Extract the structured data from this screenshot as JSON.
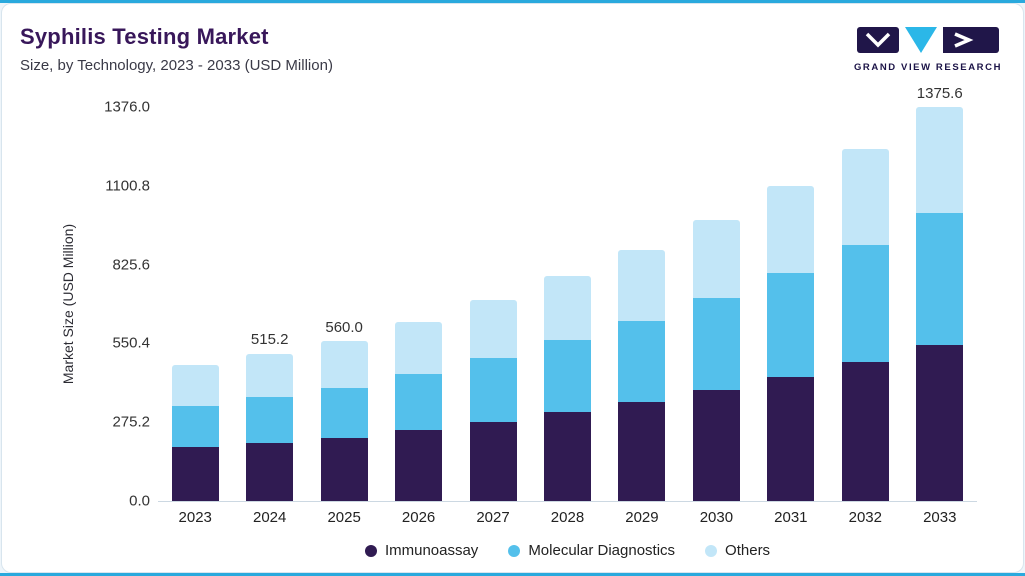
{
  "page": {
    "title": "Syphilis Testing Market",
    "subtitle": "Size, by Technology, 2023 - 2033 (USD Million)",
    "logo_text": "GRAND VIEW RESEARCH"
  },
  "colors": {
    "accent_line": "#29a9dd",
    "title_text": "#38175a",
    "logo_navy": "#201649",
    "logo_cyan": "#2bb7e8"
  },
  "chart_data": {
    "type": "bar",
    "stacked": true,
    "title": "Syphilis Testing Market Size, by Technology, 2023 - 2033 (USD Million)",
    "ylabel": "Market Size (USD Million)",
    "ylim": [
      0,
      1376.0
    ],
    "grid": false,
    "legend_position": "bottom",
    "categories": [
      "2023",
      "2024",
      "2025",
      "2026",
      "2027",
      "2028",
      "2029",
      "2030",
      "2031",
      "2032",
      "2033"
    ],
    "series": [
      {
        "name": "Immunoassay",
        "color": "#301b52",
        "values": [
          187.2,
          203.5,
          221.2,
          247.5,
          276.9,
          309.9,
          346.7,
          387.9,
          434.1,
          485.7,
          543.4
        ]
      },
      {
        "name": "Molecular Diagnostics",
        "color": "#54c0eb",
        "values": [
          144.6,
          158.7,
          174.2,
          196.8,
          222.2,
          251.0,
          283.5,
          320.1,
          361.5,
          408.3,
          461.0
        ]
      },
      {
        "name": "Others",
        "color": "#c2e6f8",
        "values": [
          142.2,
          153.0,
          164.6,
          182.3,
          202.0,
          223.6,
          247.6,
          274.1,
          303.3,
          335.6,
          371.2
        ]
      }
    ],
    "totals": [
      474.0,
      515.2,
      560.0,
      626.6,
      701.1,
      784.5,
      877.8,
      982.1,
      1098.9,
      1229.6,
      1375.6
    ],
    "totals_labels": {
      "2024": "515.2",
      "2025": "560.0",
      "2033": "1375.6"
    },
    "yticks": [
      {
        "label": "0.0",
        "value": 0
      },
      {
        "label": "275.2",
        "value": 275.2
      },
      {
        "label": "550.4",
        "value": 550.4
      },
      {
        "label": "825.6",
        "value": 825.6
      },
      {
        "label": "1100.8",
        "value": 1100.8
      },
      {
        "label": "1376.0",
        "value": 1376.0
      }
    ]
  }
}
